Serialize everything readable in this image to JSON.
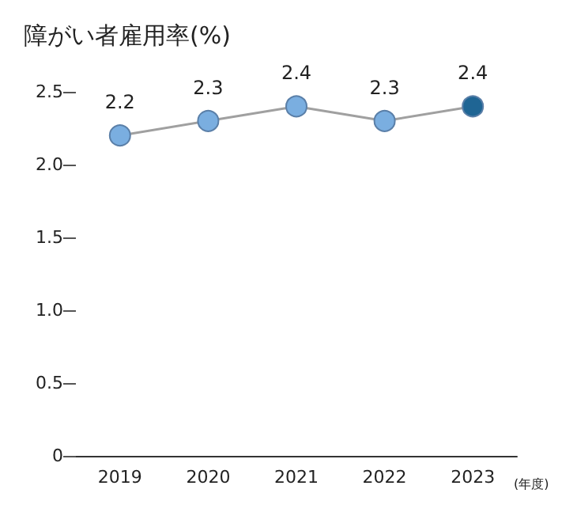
{
  "chart_data": {
    "type": "line",
    "title": "障がい者雇用率(%)",
    "xlabel": "(年度)",
    "categories": [
      "2019",
      "2020",
      "2021",
      "2022",
      "2023"
    ],
    "series": [
      {
        "color": "#a0a0a0",
        "colors": [
          "#7aaee0",
          "#7aaee0",
          "#7aaee0",
          "#7aaee0",
          "#1f6594"
        ],
        "values": [
          2.2,
          2.3,
          2.4,
          2.3,
          2.4
        ]
      }
    ],
    "ylim": [
      0,
      2.5
    ],
    "yticks": [
      0,
      0.5,
      {
        "value": 1,
        "label": "1.0"
      },
      1.5,
      {
        "value": 2,
        "label": "2.0"
      },
      2.5
    ],
    "grid": false,
    "marker": "circle",
    "line_style": "solid",
    "data_labels": true
  }
}
